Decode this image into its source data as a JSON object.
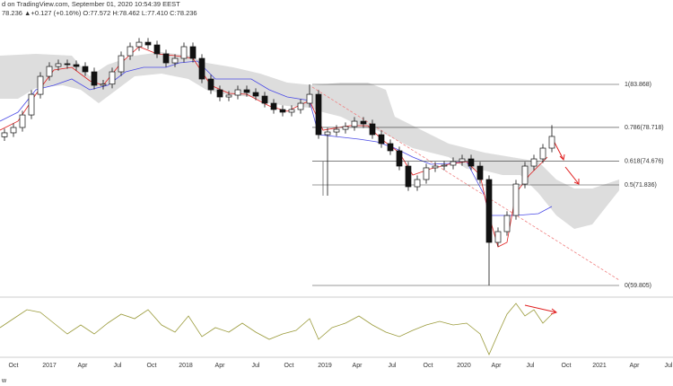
{
  "header": {
    "line1": "d on TradingView.com, September 01, 2020 10:54:39 EEST",
    "line2": "78.236 ▲+0.127 (+0.16%) O:77.572 H:78.462 L:77.410 C:78.236"
  },
  "fib_levels": [
    {
      "value": 83.868,
      "label": "1(83.868)"
    },
    {
      "value": 78.718,
      "label": "0.786(78.718)"
    },
    {
      "value": 74.676,
      "label": "0.618(74.676)"
    },
    {
      "value": 71.836,
      "label": "0.5(71.836)"
    },
    {
      "value": 59.805,
      "label": "0(59.805)"
    }
  ],
  "x_axis": [
    "Oct",
    "2017",
    "Apr",
    "Jul",
    "Oct",
    "2018",
    "Apr",
    "Jul",
    "Oct",
    "2019",
    "Apr",
    "Jul",
    "Oct",
    "2020",
    "Apr",
    "Jul",
    "Oct",
    "2021",
    "Apr",
    "Jul"
  ],
  "footer": "w",
  "candles": {
    "open": [
      77.6,
      78.07,
      78.71,
      80.21,
      82.68,
      84.83,
      86.01,
      86.34,
      86.23,
      86.01,
      85.37,
      83.76,
      83.9,
      85.37,
      87.3,
      88.38,
      88.91,
      88.59,
      87.52,
      86.44,
      86.98,
      88.38,
      86.98,
      84.51,
      83.22,
      82.36,
      82.58,
      83.22,
      82.9,
      82.47,
      81.61,
      80.86,
      80.54,
      80.86,
      81.61,
      82.68,
      77.85,
      78.17,
      78.49,
      78.82,
      79.46,
      79.14,
      77.85,
      76.78,
      75.92,
      74.09,
      71.62,
      72.48,
      73.88,
      74.09,
      74.2,
      74.63,
      74.95,
      74.09,
      72.48,
      64.96,
      66.25,
      68.18,
      71.94,
      74.09,
      74.95,
      76.24
    ],
    "high": [
      78.57,
      79.21,
      80.71,
      83.18,
      85.33,
      86.51,
      86.84,
      86.84,
      86.73,
      86.51,
      85.87,
      84.4,
      85.87,
      87.8,
      88.88,
      89.41,
      89.41,
      89.09,
      88.02,
      87.48,
      88.88,
      88.88,
      87.48,
      85.01,
      83.72,
      83.08,
      83.72,
      83.72,
      83.4,
      82.97,
      82.11,
      81.36,
      81.36,
      82.11,
      83.87,
      83.18,
      78.67,
      78.99,
      79.32,
      79.96,
      79.96,
      79.64,
      78.35,
      77.28,
      76.42,
      74.59,
      72.98,
      74.38,
      74.59,
      74.7,
      75.13,
      75.45,
      75.45,
      74.59,
      72.98,
      66.75,
      68.68,
      72.44,
      74.59,
      75.45,
      76.74,
      79.0
    ],
    "low": [
      77.1,
      77.57,
      78.21,
      79.71,
      82.18,
      84.33,
      85.51,
      85.73,
      85.51,
      84.87,
      83.26,
      83.26,
      83.4,
      84.87,
      86.8,
      87.88,
      88.09,
      87.02,
      85.94,
      85.94,
      86.48,
      86.48,
      84.01,
      82.72,
      81.86,
      81.86,
      82.08,
      82.4,
      81.97,
      81.11,
      80.36,
      80.04,
      80.04,
      80.36,
      81.11,
      77.35,
      70.55,
      77.67,
      77.99,
      78.32,
      78.64,
      77.35,
      76.28,
      75.42,
      73.59,
      71.12,
      71.12,
      71.98,
      73.38,
      73.59,
      73.7,
      74.13,
      73.59,
      71.98,
      59.81,
      64.46,
      65.75,
      67.68,
      71.44,
      73.59,
      74.45,
      75.74
    ],
    "close": [
      78.07,
      78.71,
      80.21,
      82.68,
      84.83,
      86.01,
      86.34,
      86.23,
      86.01,
      85.37,
      83.76,
      83.9,
      85.37,
      87.3,
      88.38,
      88.91,
      88.59,
      87.52,
      86.44,
      86.98,
      88.38,
      86.98,
      84.51,
      83.22,
      82.36,
      82.58,
      83.22,
      82.9,
      82.47,
      81.61,
      80.86,
      80.54,
      80.86,
      81.61,
      82.68,
      77.85,
      78.17,
      78.49,
      78.82,
      79.46,
      79.14,
      77.85,
      76.78,
      75.92,
      74.09,
      71.62,
      72.48,
      73.88,
      74.09,
      74.2,
      74.63,
      74.95,
      74.09,
      72.48,
      64.96,
      66.25,
      68.18,
      71.94,
      74.09,
      74.95,
      76.24,
      77.64
    ]
  }
}
